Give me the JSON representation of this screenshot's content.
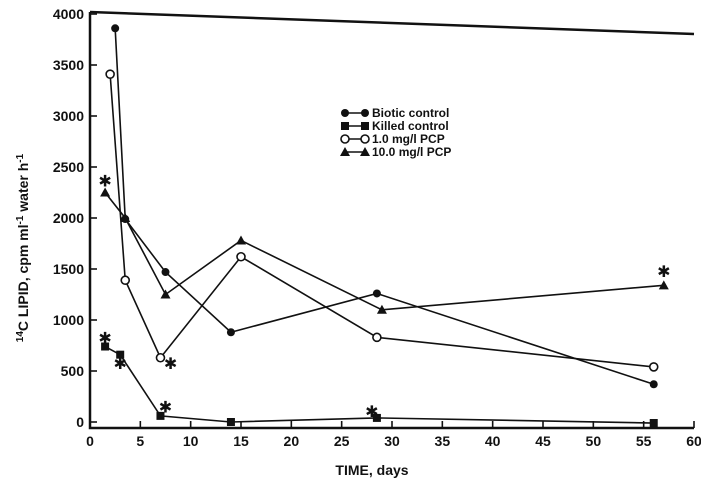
{
  "chart_data": {
    "type": "line",
    "title": "",
    "xlabel": "TIME, days",
    "ylabel": "14C LIPID, cpm ml-1 water h-1",
    "ylabel_parts": {
      "superscript_isotope": "14",
      "main": "C LIPID, cpm ml",
      "exp1": "-1",
      "mid": " water h",
      "exp2": "-1"
    },
    "xlim": [
      0,
      60
    ],
    "ylim": [
      0,
      4000
    ],
    "xticks": [
      0,
      5,
      10,
      15,
      20,
      25,
      30,
      35,
      40,
      45,
      50,
      55,
      60
    ],
    "yticks": [
      0,
      500,
      1000,
      1500,
      2000,
      2500,
      3000,
      3500,
      4000
    ],
    "grid": false,
    "legend_position": "top-right",
    "series": [
      {
        "name": "Biotic control",
        "marker": "filled-circle",
        "points": [
          [
            2.5,
            3860
          ],
          [
            3.5,
            1990
          ],
          [
            7.5,
            1470
          ],
          [
            14,
            880
          ],
          [
            28.5,
            1260
          ],
          [
            56,
            370
          ]
        ]
      },
      {
        "name": "Killed control",
        "marker": "filled-square",
        "points": [
          [
            1.5,
            740
          ],
          [
            3,
            660
          ],
          [
            7,
            60
          ],
          [
            14,
            0
          ],
          [
            28.5,
            40
          ],
          [
            56,
            -10
          ]
        ]
      },
      {
        "name": "1.0 mg/l PCP",
        "marker": "open-circle",
        "points": [
          [
            2,
            3410
          ],
          [
            3.5,
            1390
          ],
          [
            7,
            630
          ],
          [
            15,
            1620
          ],
          [
            28.5,
            830
          ],
          [
            56,
            540
          ]
        ]
      },
      {
        "name": "10.0 mg/l PCP",
        "marker": "filled-triangle",
        "points": [
          [
            1.5,
            2250
          ],
          [
            3.5,
            2000
          ],
          [
            7.5,
            1250
          ],
          [
            15,
            1780
          ],
          [
            29,
            1100
          ],
          [
            57,
            1340
          ]
        ]
      }
    ],
    "star_annotations": [
      {
        "x": 1.5,
        "y": 2360
      },
      {
        "x": 1.5,
        "y": 820
      },
      {
        "x": 3,
        "y": 570
      },
      {
        "x": 8,
        "y": 570
      },
      {
        "x": 7.5,
        "y": 140
      },
      {
        "x": 28,
        "y": 100
      },
      {
        "x": 57,
        "y": 1470
      }
    ]
  }
}
